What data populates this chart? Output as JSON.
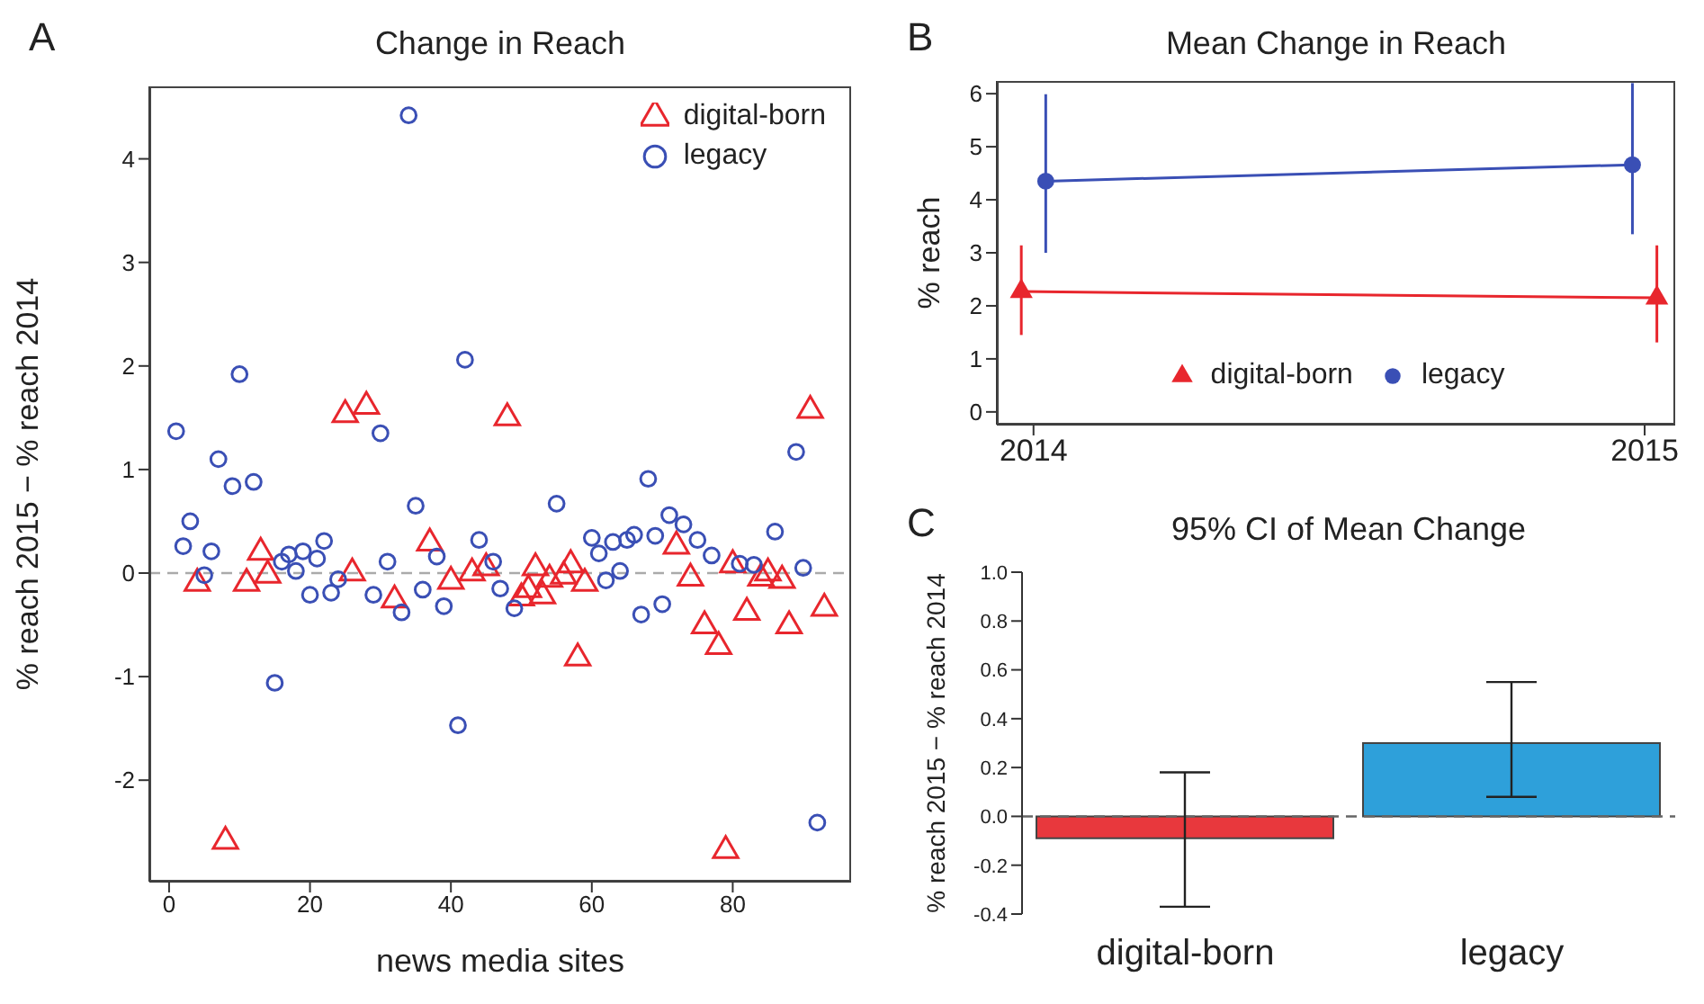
{
  "chart_data": [
    {
      "type": "scatter",
      "title": "Change in Reach",
      "xlabel": "news media sites",
      "ylabel": "% reach 2015 − % reach 2014",
      "annotations": [
        "A"
      ],
      "xlim": [
        -2.8,
        96.8
      ],
      "xticks": [
        0,
        20,
        40,
        60,
        80
      ],
      "ylim": [
        -2.98,
        4.7
      ],
      "yticks": [
        -2,
        -1,
        0,
        1,
        2,
        3,
        4
      ],
      "legend": "top right",
      "ref_lines": [
        {
          "axis": "y",
          "value": 0,
          "color": "#aaaaaa",
          "line_style": "dashed"
        }
      ],
      "series": [
        {
          "name": "digital-born",
          "color": "#e8262d",
          "marker": "triangle",
          "x": [
            4,
            8,
            11,
            13,
            14,
            25,
            26,
            28,
            32,
            37,
            40,
            43,
            45,
            48,
            50,
            51,
            52,
            53,
            54,
            56,
            57,
            58,
            59,
            72,
            74,
            76,
            78,
            79,
            80,
            82,
            84,
            85,
            87,
            88,
            91,
            93
          ],
          "values": [
            -0.1,
            -2.59,
            -0.1,
            0.2,
            -0.02,
            1.53,
            0,
            1.61,
            -0.26,
            0.29,
            -0.08,
            0,
            0.05,
            1.5,
            -0.24,
            -0.16,
            0.05,
            -0.22,
            -0.06,
            -0.03,
            0.08,
            -0.82,
            -0.1,
            0.26,
            -0.05,
            -0.51,
            -0.71,
            -2.68,
            0.08,
            -0.38,
            -0.05,
            0,
            -0.07,
            -0.51,
            1.57,
            -0.34
          ]
        },
        {
          "name": "legacy",
          "color": "#3a4fb5",
          "marker": "circle",
          "x": [
            1,
            2,
            3,
            5,
            6,
            7,
            9,
            10,
            12,
            15,
            16,
            17,
            18,
            19,
            20,
            21,
            22,
            23,
            24,
            29,
            30,
            31,
            33,
            34,
            35,
            36,
            38,
            39,
            41,
            42,
            44,
            46,
            47,
            49,
            55,
            60,
            61,
            62,
            63,
            64,
            65,
            66,
            67,
            68,
            69,
            70,
            71,
            73,
            75,
            77,
            81,
            83,
            86,
            89,
            90,
            92
          ],
          "values": [
            1.37,
            0.26,
            0.5,
            -0.02,
            0.21,
            1.1,
            0.84,
            1.92,
            0.88,
            -1.06,
            0.11,
            0.18,
            0.02,
            0.21,
            -0.21,
            0.14,
            0.31,
            -0.19,
            -0.06,
            -0.21,
            1.35,
            0.11,
            -0.38,
            4.42,
            0.65,
            -0.16,
            0.16,
            -0.32,
            -1.47,
            2.06,
            0.32,
            0.11,
            -0.15,
            -0.34,
            0.67,
            0.34,
            0.19,
            -0.07,
            0.3,
            0.02,
            0.32,
            0.37,
            -0.4,
            0.91,
            0.36,
            -0.3,
            0.56,
            0.47,
            0.32,
            0.17,
            0.09,
            0.08,
            0.4,
            1.17,
            0.05,
            -2.41
          ]
        }
      ]
    },
    {
      "type": "line",
      "title": "Mean Change in Reach",
      "ylabel": "% reach",
      "annotations": [
        "B"
      ],
      "xlim": [
        2013.94,
        2015.05
      ],
      "xticks": [
        2014,
        2015
      ],
      "ylim": [
        -0.24,
        6.24
      ],
      "yticks": [
        0,
        1,
        2,
        3,
        4,
        5,
        6
      ],
      "legend": "bottom",
      "series": [
        {
          "name": "digital-born",
          "color": "#e8262d",
          "marker": "triangle",
          "x": [
            2013.98,
            2015.02
          ],
          "values": [
            2.27,
            2.15
          ],
          "errors": [
            [
              1.45,
              3.14
            ],
            [
              1.31,
              3.14
            ]
          ]
        },
        {
          "name": "legacy",
          "color": "#3a4fb5",
          "marker": "circle",
          "x": [
            2014.02,
            2014.98
          ],
          "values": [
            4.35,
            4.66
          ],
          "errors": [
            [
              3.0,
              5.99
            ],
            [
              3.35,
              6.2
            ]
          ]
        }
      ]
    },
    {
      "type": "bar",
      "title": "95% CI of Mean Change",
      "ylabel": "% reach 2015 − % reach 2014",
      "annotations": [
        "C"
      ],
      "categories": [
        "digital-born",
        "legacy"
      ],
      "values": [
        -0.09,
        0.3
      ],
      "colors": [
        "#e8383d",
        "#2ea0da"
      ],
      "errors": [
        [
          -0.37,
          0.18
        ],
        [
          0.08,
          0.55
        ]
      ],
      "ylim": [
        -0.4,
        1.0
      ],
      "yticks": [
        {
          "value": -0.4,
          "label": "-0.4"
        },
        {
          "value": -0.2,
          "label": "-0.2"
        },
        {
          "value": 0,
          "label": "0.0"
        },
        {
          "value": 0.2,
          "label": "0.2"
        },
        {
          "value": 0.4,
          "label": "0.4"
        },
        {
          "value": 0.6,
          "label": "0.6"
        },
        {
          "value": 0.8,
          "label": "0.8"
        },
        {
          "value": 1.0,
          "label": "1.0"
        }
      ],
      "ref_lines": [
        {
          "axis": "y",
          "value": 0,
          "color": "#666666",
          "line_style": "dashed"
        }
      ]
    }
  ]
}
